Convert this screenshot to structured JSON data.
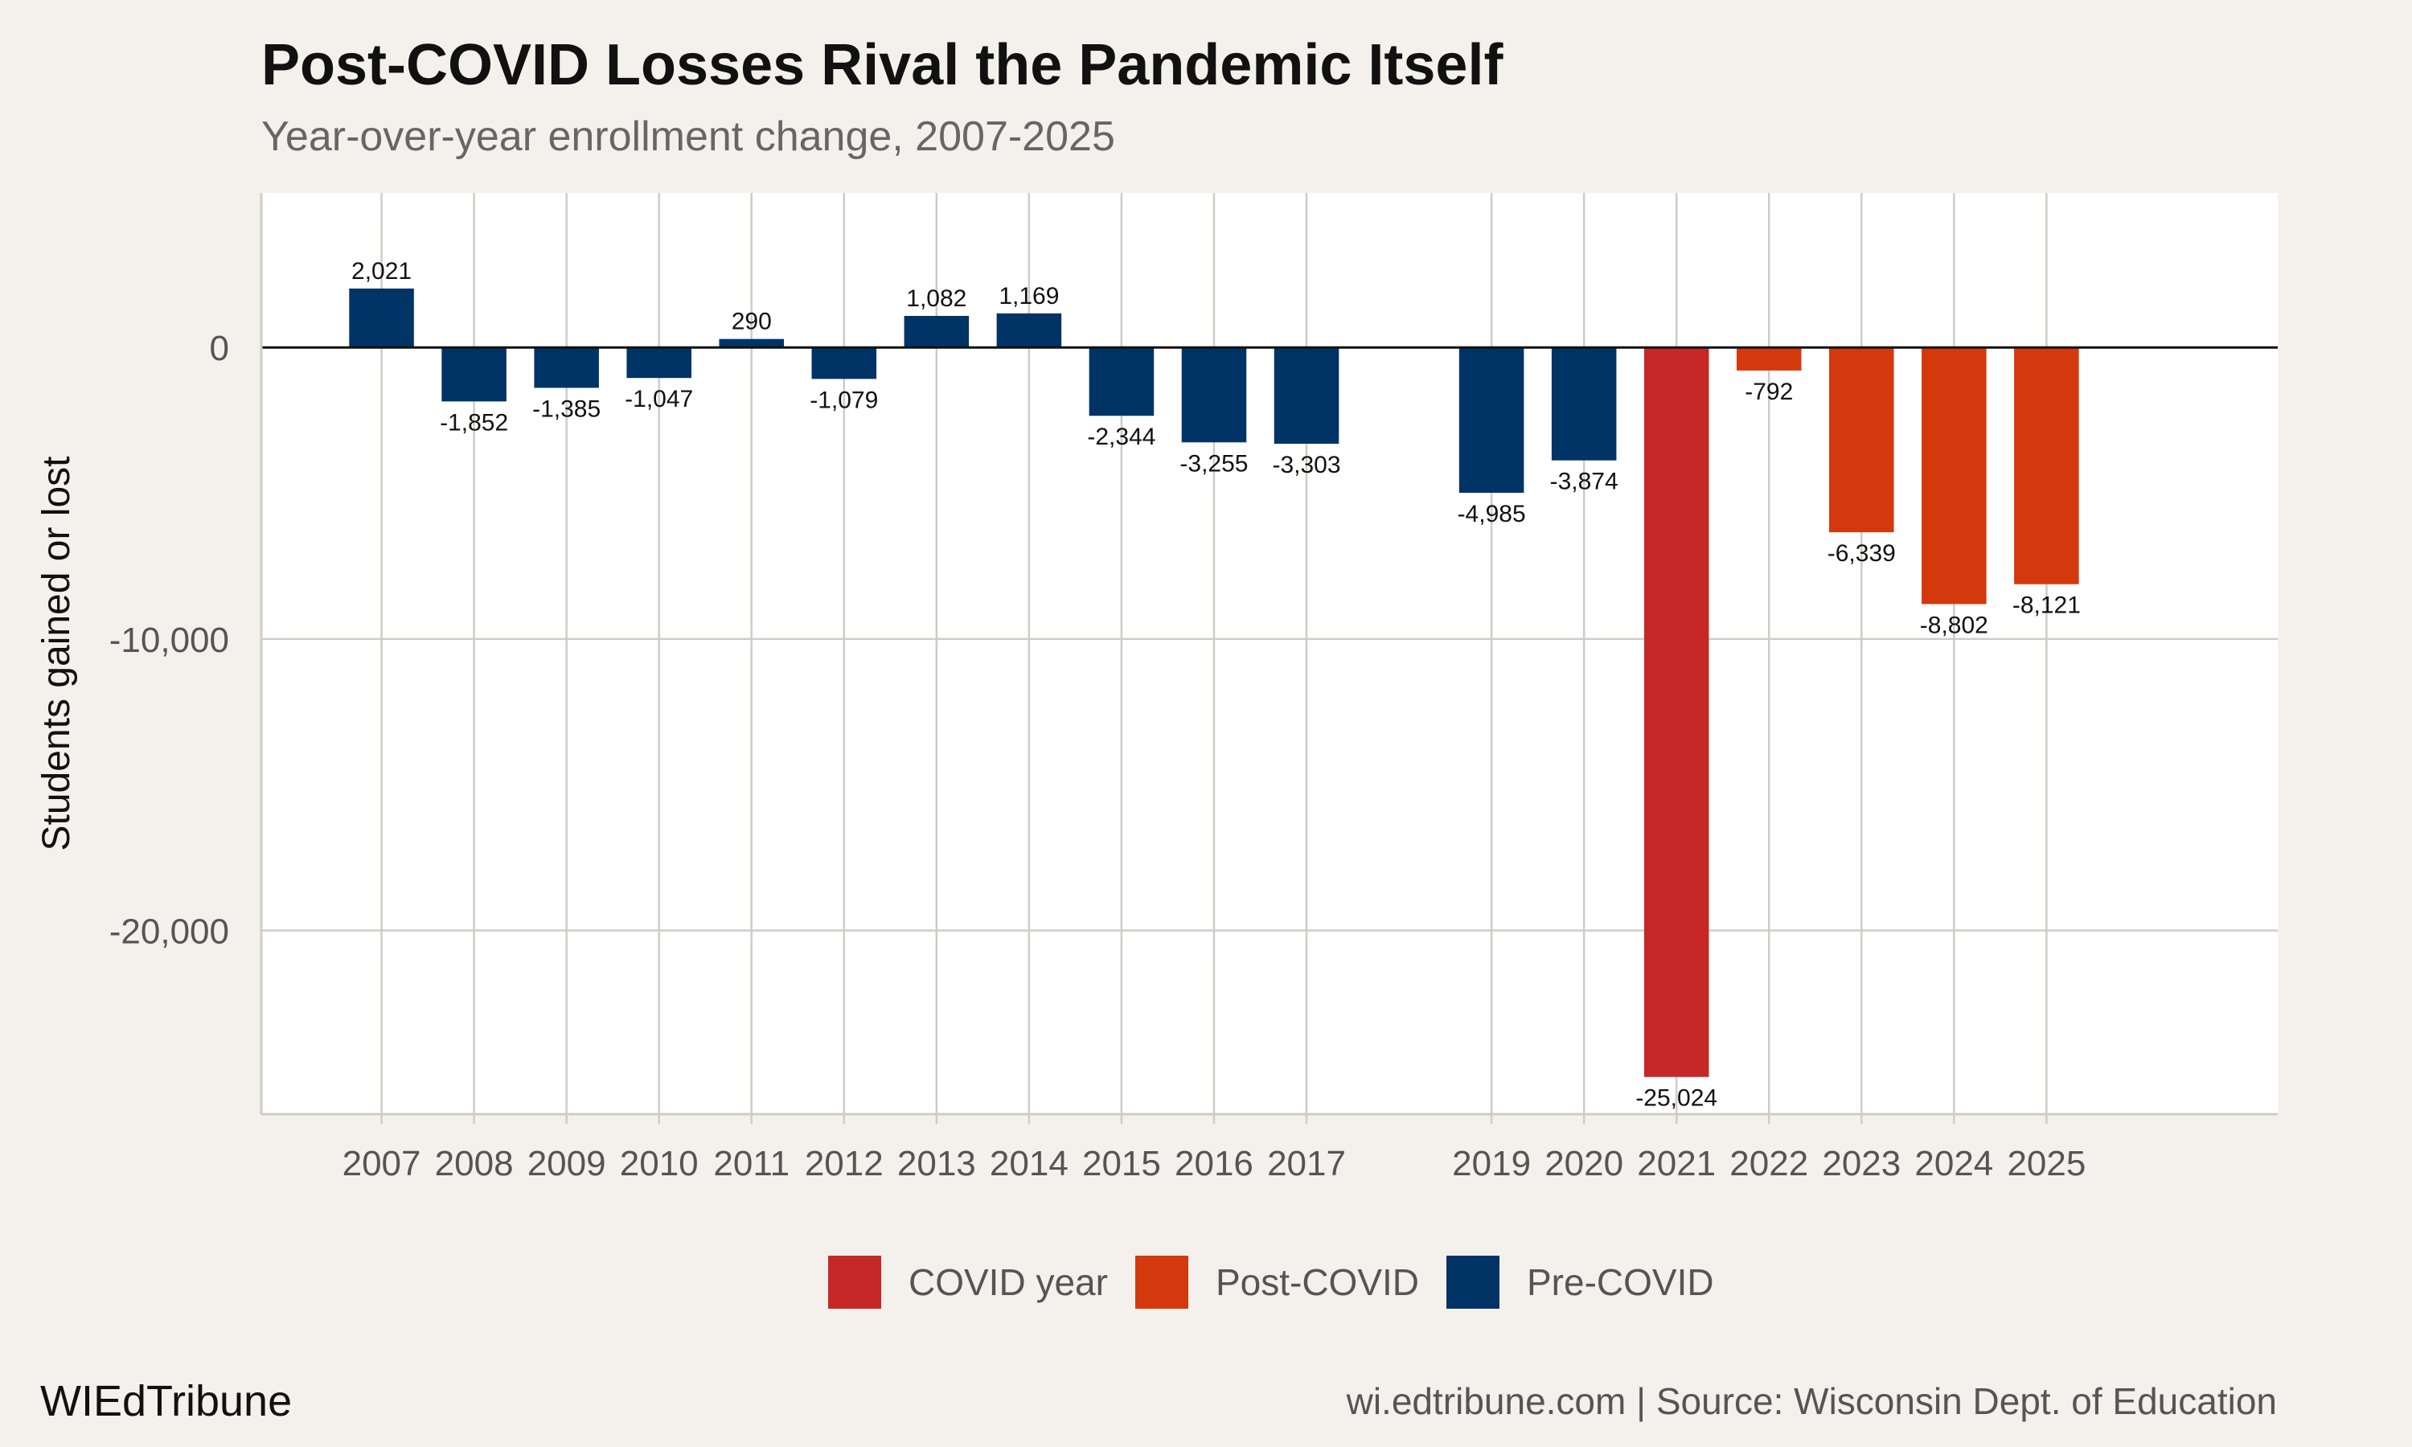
{
  "title": "Post-COVID Losses Rival the Pandemic Itself",
  "subtitle": "Year-over-year enrollment change, 2007-2025",
  "footer": {
    "brand": "WIEdTribune",
    "source": "wi.edtribune.com | Source: Wisconsin Dept. of Education"
  },
  "colors": {
    "pre_covid": "#003366",
    "covid_year": "#c62828",
    "post_covid": "#d4390d",
    "panel": "#ffffff",
    "grid": "#cfccc5",
    "zero_line": "#111111"
  },
  "chart_data": {
    "type": "bar",
    "title": "Post-COVID Losses Rival the Pandemic Itself",
    "subtitle": "Year-over-year enrollment change, 2007-2025",
    "xlabel": "",
    "ylabel": "Students gained or lost",
    "ylim": [
      -26300,
      5300
    ],
    "xlim": [
      2005.7,
      2027.5
    ],
    "y_ticks": [
      0,
      -10000,
      -20000
    ],
    "y_tick_labels": [
      "0",
      "-10,000",
      "-20,000"
    ],
    "grid": true,
    "legend_position": "bottom",
    "legend": [
      {
        "name": "COVID year",
        "color": "#c62828"
      },
      {
        "name": "Post-COVID",
        "color": "#d4390d"
      },
      {
        "name": "Pre-COVID",
        "color": "#003366"
      }
    ],
    "bars": [
      {
        "year": 2007,
        "value": 2021,
        "label": "2,021",
        "group": "Pre-COVID"
      },
      {
        "year": 2008,
        "value": -1852,
        "label": "-1,852",
        "group": "Pre-COVID"
      },
      {
        "year": 2009,
        "value": -1385,
        "label": "-1,385",
        "group": "Pre-COVID"
      },
      {
        "year": 2010,
        "value": -1047,
        "label": "-1,047",
        "group": "Pre-COVID"
      },
      {
        "year": 2011,
        "value": 290,
        "label": "290",
        "group": "Pre-COVID"
      },
      {
        "year": 2012,
        "value": -1079,
        "label": "-1,079",
        "group": "Pre-COVID"
      },
      {
        "year": 2013,
        "value": 1082,
        "label": "1,082",
        "group": "Pre-COVID"
      },
      {
        "year": 2014,
        "value": 1169,
        "label": "1,169",
        "group": "Pre-COVID"
      },
      {
        "year": 2015,
        "value": -2344,
        "label": "-2,344",
        "group": "Pre-COVID"
      },
      {
        "year": 2016,
        "value": -3255,
        "label": "-3,255",
        "group": "Pre-COVID"
      },
      {
        "year": 2017,
        "value": -3303,
        "label": "-3,303",
        "group": "Pre-COVID"
      },
      {
        "year": 2019,
        "value": -4985,
        "label": "-4,985",
        "group": "Pre-COVID"
      },
      {
        "year": 2020,
        "value": -3874,
        "label": "-3,874",
        "group": "Pre-COVID"
      },
      {
        "year": 2021,
        "value": -25024,
        "label": "-25,024",
        "group": "COVID year"
      },
      {
        "year": 2022,
        "value": -792,
        "label": "-792",
        "group": "Post-COVID"
      },
      {
        "year": 2023,
        "value": -6339,
        "label": "-6,339",
        "group": "Post-COVID"
      },
      {
        "year": 2024,
        "value": -8802,
        "label": "-8,802",
        "group": "Post-COVID"
      },
      {
        "year": 2025,
        "value": -8121,
        "label": "-8,121",
        "group": "Post-COVID"
      }
    ]
  }
}
